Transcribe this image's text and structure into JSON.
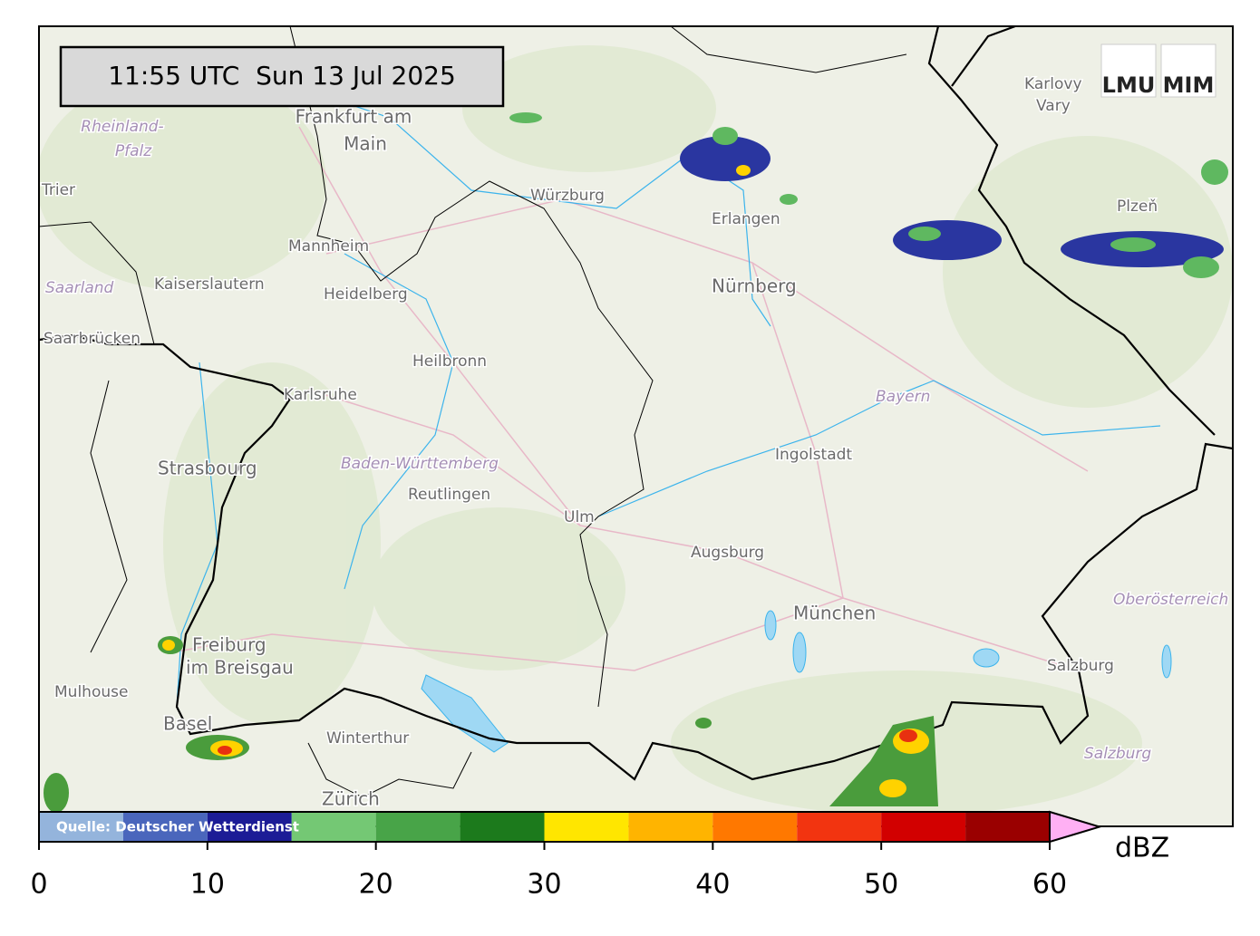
{
  "timestamp": "11:55 UTC  Sun 13 Jul 2025",
  "logo": {
    "left": "LMU",
    "right": "MIM"
  },
  "source": "Quelle: Deutscher Wetterdienst",
  "places": [
    "Frankfurt am",
    "Main",
    "Rheinland-",
    "Pfalz",
    "Trier",
    "Saarland",
    "Kaiserslautern",
    "Saarbrücken",
    "Mannheim",
    "Heidelberg",
    "Würzburg",
    "Erlangen",
    "Nürnberg",
    "Heilbronn",
    "Karlsruhe",
    "Strasbourg",
    "Baden-Württemberg",
    "Reutlingen",
    "Ulm",
    "Ingolstadt",
    "Augsburg",
    "München",
    "Bayern",
    "Oberösterreich",
    "Salzburg",
    "Salzburg",
    "Freiburg",
    "im Breisgau",
    "Mulhouse",
    "Basel",
    "Winterthur",
    "Zürich",
    "Karlovy",
    "Vary",
    "Plzeň"
  ],
  "colorbar": {
    "bins": [
      0,
      5,
      10,
      15,
      20,
      25,
      30,
      35,
      40,
      45,
      50,
      55,
      60
    ],
    "colors": [
      "#94b4dc",
      "#4a66bc",
      "#1c1c96",
      "#74c874",
      "#48a448",
      "#1c7a1c",
      "#ffe600",
      "#ffb400",
      "#ff7800",
      "#f23410",
      "#d20000",
      "#9a0000"
    ],
    "extend_color": "#ffb0f4",
    "ticks": [
      0,
      10,
      20,
      30,
      40,
      50,
      60
    ],
    "label": "dBZ"
  }
}
